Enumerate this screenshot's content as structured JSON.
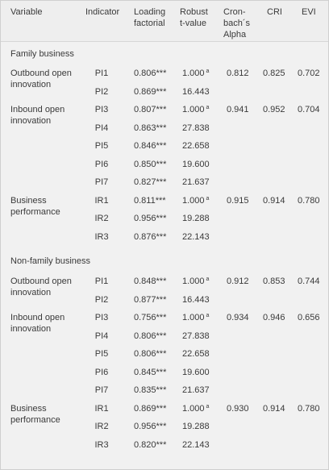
{
  "header": {
    "variable": "Variable",
    "indicator": "Indicator",
    "loading_l1": "Loading",
    "loading_l2": "factorial",
    "robust_l1": "Robust",
    "robust_l2": "t-value",
    "cron_l1": "Cron-",
    "cron_l2": "bach´s",
    "cron_l3": "Alpha",
    "cri": "CRI",
    "evi": "EVI"
  },
  "family": {
    "title": "Family business",
    "outbound_l1": "Outbound open",
    "outbound_l2": "innovation",
    "inbound_l1": "Inbound open",
    "inbound_l2": "innovation",
    "business_l1": "Business",
    "business_l2": "performance",
    "rows": [
      {
        "ind": "PI1",
        "load": "0.806***",
        "t": "1.000",
        "sup": "a",
        "alpha": "0.812",
        "cri": "0.825",
        "evi": "0.702"
      },
      {
        "ind": "PI2",
        "load": "0.869***",
        "t": "16.443"
      },
      {
        "ind": "PI3",
        "load": "0.807***",
        "t": "1.000",
        "sup": "a",
        "alpha": "0.941",
        "cri": "0.952",
        "evi": "0.704"
      },
      {
        "ind": "PI4",
        "load": "0.863***",
        "t": "27.838"
      },
      {
        "ind": "PI5",
        "load": "0.846***",
        "t": "22.658"
      },
      {
        "ind": "PI6",
        "load": "0.850***",
        "t": "19.600"
      },
      {
        "ind": "PI7",
        "load": "0.827***",
        "t": "21.637"
      },
      {
        "ind": "IR1",
        "load": "0.811***",
        "t": "1.000",
        "sup": "a",
        "alpha": "0.915",
        "cri": "0.914",
        "evi": "0.780"
      },
      {
        "ind": "IR2",
        "load": "0.956***",
        "t": "19.288"
      },
      {
        "ind": "IR3",
        "load": "0.876***",
        "t": "22.143"
      }
    ]
  },
  "nonfamily": {
    "title": "Non-family business",
    "outbound_l1": "Outbound open",
    "outbound_l2": "innovation",
    "inbound_l1": "Inbound open",
    "inbound_l2": "innovation",
    "business_l1": "Business",
    "business_l2": "performance",
    "rows": [
      {
        "ind": "PI1",
        "load": "0.848***",
        "t": "1.000",
        "sup": "a",
        "alpha": "0.912",
        "cri": "0.853",
        "evi": "0.744"
      },
      {
        "ind": "PI2",
        "load": "0.877***",
        "t": "16.443"
      },
      {
        "ind": "PI3",
        "load": "0.756***",
        "t": "1.000",
        "sup": "a",
        "alpha": "0.934",
        "cri": "0.946",
        "evi": "0.656"
      },
      {
        "ind": "PI4",
        "load": "0.806***",
        "t": "27.838"
      },
      {
        "ind": "PI5",
        "load": "0.806***",
        "t": "22.658"
      },
      {
        "ind": "PI6",
        "load": "0.845***",
        "t": "19.600"
      },
      {
        "ind": "PI7",
        "load": "0.835***",
        "t": "21.637"
      },
      {
        "ind": "IR1",
        "load": "0.869***",
        "t": "1.000",
        "sup": "a",
        "alpha": "0.930",
        "cri": "0.914",
        "evi": "0.780"
      },
      {
        "ind": "IR2",
        "load": "0.956***",
        "t": "19.288"
      },
      {
        "ind": "IR3",
        "load": "0.820***",
        "t": "22.143"
      }
    ]
  }
}
